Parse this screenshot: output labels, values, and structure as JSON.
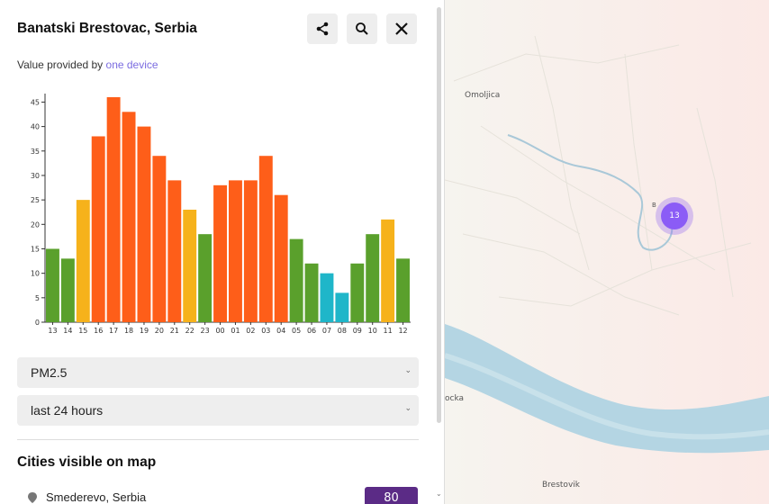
{
  "panel": {
    "title": "Banatski Brestovac, Serbia",
    "subtitle_prefix": "Value provided by ",
    "subtitle_link": "one device",
    "buttons": {
      "share": "share-icon",
      "search": "search-icon",
      "close": "close-icon"
    },
    "pollutant_select": "PM2.5",
    "range_select": "last 24 hours",
    "cities_heading": "Cities visible on map",
    "cities": [
      {
        "name": "Smederevo, Serbia",
        "value": "80"
      }
    ]
  },
  "chart_data": {
    "type": "bar",
    "categories": [
      "13",
      "14",
      "15",
      "16",
      "17",
      "18",
      "19",
      "20",
      "21",
      "22",
      "23",
      "00",
      "01",
      "02",
      "03",
      "04",
      "05",
      "06",
      "07",
      "08",
      "09",
      "10",
      "11",
      "12"
    ],
    "values": [
      15,
      13,
      25,
      38,
      46,
      43,
      40,
      34,
      29,
      23,
      18,
      28,
      29,
      29,
      34,
      26,
      17,
      12,
      10,
      6,
      12,
      18,
      21,
      13
    ],
    "colors": [
      "#5aa02c",
      "#5aa02c",
      "#f6b21b",
      "#fe5e19",
      "#fe5e19",
      "#fe5e19",
      "#fe5e19",
      "#fe5e19",
      "#fe5e19",
      "#f6b21b",
      "#5aa02c",
      "#fe5e19",
      "#fe5e19",
      "#fe5e19",
      "#fe5e19",
      "#fe5e19",
      "#5aa02c",
      "#5aa02c",
      "#1fb6c9",
      "#1fb6c9",
      "#5aa02c",
      "#5aa02c",
      "#f6b21b",
      "#5aa02c"
    ],
    "yticks": [
      0,
      5,
      10,
      15,
      20,
      25,
      30,
      35,
      40,
      45
    ],
    "ylim": [
      0,
      46
    ]
  },
  "map": {
    "labels": [
      "Omoljica",
      "Brestovik",
      "ocka"
    ],
    "cluster_count": "13",
    "cluster_side_label": "B"
  }
}
